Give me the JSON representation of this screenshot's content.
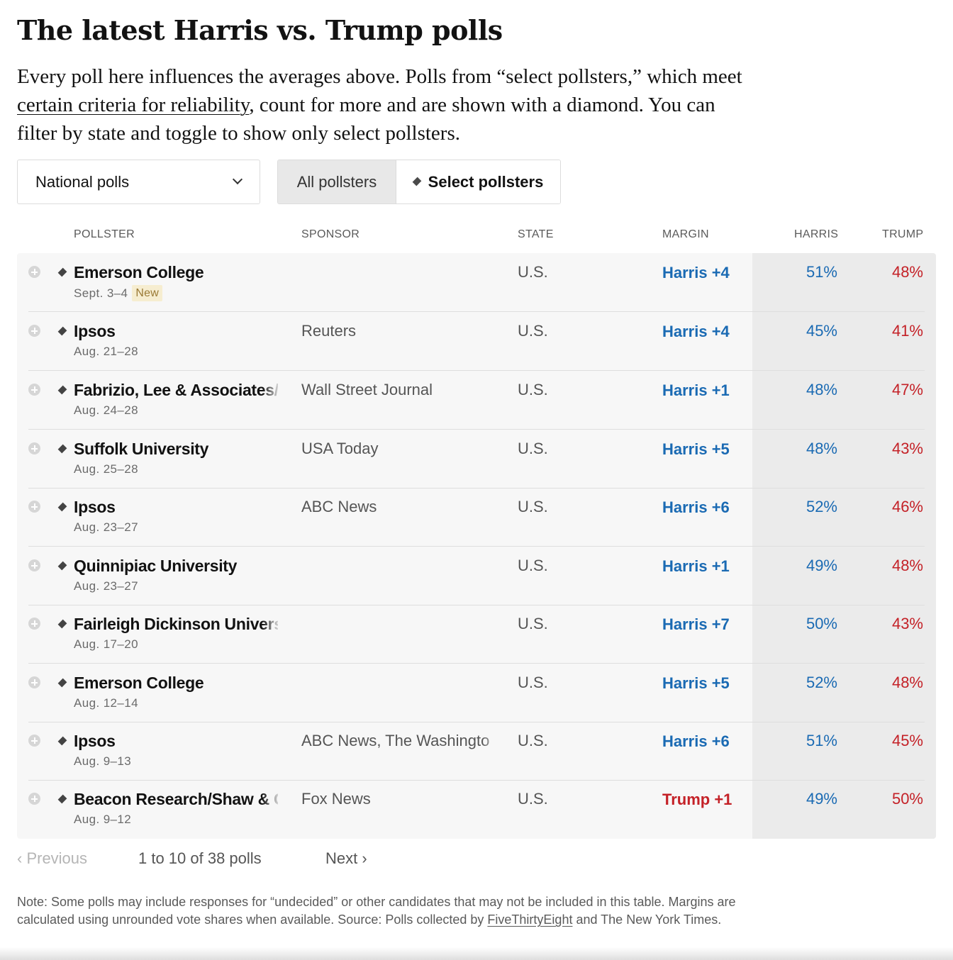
{
  "title": "The latest Harris vs. Trump polls",
  "intro": {
    "part1": "Every poll here influences the averages above. Polls from “select pollsters,” which meet ",
    "link": "certain criteria for reliability",
    "part2": ", count for more and are shown with a diamond. You can filter by state and toggle to show only select pollsters."
  },
  "filter": {
    "selected": "National polls",
    "icon": "chevron-down-icon"
  },
  "toggle": {
    "all_label": "All pollsters",
    "select_label": "Select pollsters",
    "active": "All pollsters"
  },
  "columns": {
    "pollster": "POLLSTER",
    "sponsor": "SPONSOR",
    "state": "STATE",
    "margin": "MARGIN",
    "harris": "HARRIS",
    "trump": "TRUMP"
  },
  "colors": {
    "harris": "#1a6ab3",
    "trump": "#c42127",
    "new_badge_bg": "#f6edd0"
  },
  "rows": [
    {
      "pollster": "Emerson College",
      "date": "Sept. 3–4",
      "badge": "New",
      "sponsor": "",
      "state": "U.S.",
      "margin": "Harris +4",
      "margin_party": "harris",
      "harris": "51%",
      "trump": "48%"
    },
    {
      "pollster": "Ipsos",
      "date": "Aug. 21–28",
      "badge": "",
      "sponsor": "Reuters",
      "state": "U.S.",
      "margin": "Harris +4",
      "margin_party": "harris",
      "harris": "45%",
      "trump": "41%"
    },
    {
      "pollster": "Fabrizio, Lee & Associates/",
      "date": "Aug. 24–28",
      "badge": "",
      "sponsor": "Wall Street Journal",
      "state": "U.S.",
      "margin": "Harris +1",
      "margin_party": "harris",
      "harris": "48%",
      "trump": "47%"
    },
    {
      "pollster": "Suffolk University",
      "date": "Aug. 25–28",
      "badge": "",
      "sponsor": "USA Today",
      "state": "U.S.",
      "margin": "Harris +5",
      "margin_party": "harris",
      "harris": "48%",
      "trump": "43%"
    },
    {
      "pollster": "Ipsos",
      "date": "Aug. 23–27",
      "badge": "",
      "sponsor": "ABC News",
      "state": "U.S.",
      "margin": "Harris +6",
      "margin_party": "harris",
      "harris": "52%",
      "trump": "46%"
    },
    {
      "pollster": "Quinnipiac University",
      "date": "Aug. 23–27",
      "badge": "",
      "sponsor": "",
      "state": "U.S.",
      "margin": "Harris +1",
      "margin_party": "harris",
      "harris": "49%",
      "trump": "48%"
    },
    {
      "pollster": "Fairleigh Dickinson Univers",
      "date": "Aug. 17–20",
      "badge": "",
      "sponsor": "",
      "state": "U.S.",
      "margin": "Harris +7",
      "margin_party": "harris",
      "harris": "50%",
      "trump": "43%"
    },
    {
      "pollster": "Emerson College",
      "date": "Aug. 12–14",
      "badge": "",
      "sponsor": "",
      "state": "U.S.",
      "margin": "Harris +5",
      "margin_party": "harris",
      "harris": "52%",
      "trump": "48%"
    },
    {
      "pollster": "Ipsos",
      "date": "Aug. 9–13",
      "badge": "",
      "sponsor": "ABC News, The Washingto",
      "state": "U.S.",
      "margin": "Harris +6",
      "margin_party": "harris",
      "harris": "51%",
      "trump": "45%"
    },
    {
      "pollster": "Beacon Research/Shaw & C",
      "date": "Aug. 9–12",
      "badge": "",
      "sponsor": "Fox News",
      "state": "U.S.",
      "margin": "Trump +1",
      "margin_party": "trump",
      "harris": "49%",
      "trump": "50%"
    }
  ],
  "pagination": {
    "prev": "‹ Previous",
    "count": "1 to 10 of 38 polls",
    "next": "Next ›"
  },
  "note": {
    "part1": "Note: Some polls may include responses for “undecided” or other candidates that may not be included in this table. Margins are calculated using unrounded vote shares when available. Source: Polls collected by ",
    "link": "FiveThirtyEight",
    "part2": " and The New York Times."
  }
}
